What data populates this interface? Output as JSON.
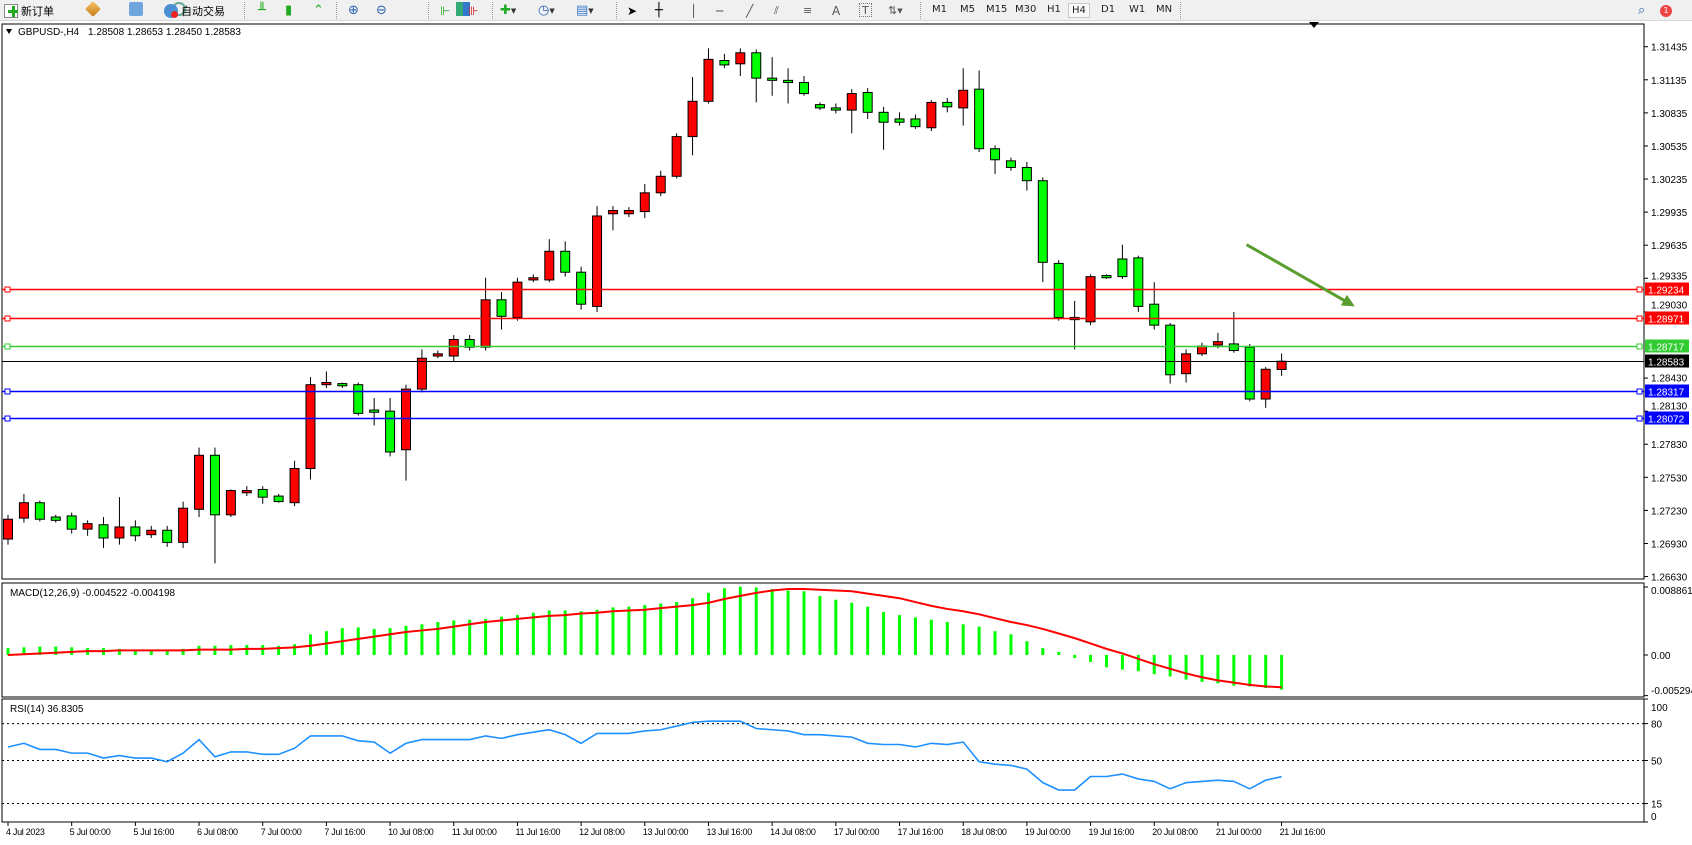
{
  "toolbar": {
    "new_order": "新订单",
    "auto_trading": "自动交易",
    "timeframes": [
      "M1",
      "M5",
      "M15",
      "M30",
      "H1",
      "H4",
      "D1",
      "W1",
      "MN"
    ],
    "active_timeframe": "H4",
    "notification_count": "1"
  },
  "chart_header": {
    "symbol": "GBPUSD-,H4",
    "ohlc": "1.28508 1.28653 1.28450 1.28583"
  },
  "macd_header": "MACD(12,26,9) -0.004522 -0.004198",
  "rsi_header": "RSI(14) 36.8305",
  "chart_data": [
    {
      "type": "candlestick",
      "symbol": "GBPUSD-",
      "timeframe": "H4",
      "ylim": [
        1.26608,
        1.31641
      ],
      "colors": {
        "bull": "#ff0000",
        "bear": "#00ff00",
        "outline": "#000000"
      },
      "y_ticks": [
        "1.31435",
        "1.31135",
        "1.30835",
        "1.30535",
        "1.30235",
        "1.29935",
        "1.29635",
        "1.29335",
        "1.29030",
        "1.28430",
        "1.28130",
        "1.27830",
        "1.27530",
        "1.27230",
        "1.26930",
        "1.26630"
      ],
      "x_ticks": [
        {
          "bar": 0,
          "label": "4 Jul 2023"
        },
        {
          "bar": 4,
          "label": "5 Jul 00:00"
        },
        {
          "bar": 8,
          "label": "5 Jul 16:00"
        },
        {
          "bar": 12,
          "label": "6 Jul 08:00"
        },
        {
          "bar": 16,
          "label": "7 Jul 00:00"
        },
        {
          "bar": 20,
          "label": "7 Jul 16:00"
        },
        {
          "bar": 24,
          "label": "10 Jul 08:00"
        },
        {
          "bar": 28,
          "label": "11 Jul 00:00"
        },
        {
          "bar": 32,
          "label": "11 Jul 16:00"
        },
        {
          "bar": 36,
          "label": "12 Jul 08:00"
        },
        {
          "bar": 40,
          "label": "13 Jul 00:00"
        },
        {
          "bar": 44,
          "label": "13 Jul 16:00"
        },
        {
          "bar": 48,
          "label": "14 Jul 08:00"
        },
        {
          "bar": 52,
          "label": "17 Jul 00:00"
        },
        {
          "bar": 56,
          "label": "17 Jul 16:00"
        },
        {
          "bar": 60,
          "label": "18 Jul 08:00"
        },
        {
          "bar": 64,
          "label": "19 Jul 00:00"
        },
        {
          "bar": 68,
          "label": "19 Jul 16:00"
        },
        {
          "bar": 72,
          "label": "20 Jul 08:00"
        },
        {
          "bar": 76,
          "label": "21 Jul 00:00"
        },
        {
          "bar": 80,
          "label": "21 Jul 16:00"
        }
      ],
      "ohlc": [
        [
          1.2697,
          1.2719,
          1.2692,
          1.2715
        ],
        [
          1.2716,
          1.2738,
          1.2712,
          1.273
        ],
        [
          1.273,
          1.2732,
          1.2713,
          1.2715
        ],
        [
          1.2717,
          1.2719,
          1.2712,
          1.2714
        ],
        [
          1.2718,
          1.2721,
          1.2702,
          1.2706
        ],
        [
          1.2706,
          1.2714,
          1.27,
          1.2711
        ],
        [
          1.271,
          1.2717,
          1.2689,
          1.2698
        ],
        [
          1.2698,
          1.2735,
          1.2692,
          1.2708
        ],
        [
          1.2708,
          1.2714,
          1.2695,
          1.27
        ],
        [
          1.2701,
          1.2709,
          1.2698,
          1.2705
        ],
        [
          1.2705,
          1.2709,
          1.269,
          1.2694
        ],
        [
          1.2694,
          1.2731,
          1.2689,
          1.2725
        ],
        [
          1.2724,
          1.278,
          1.2717,
          1.2773
        ],
        [
          1.2773,
          1.278,
          1.2675,
          1.2719
        ],
        [
          1.2719,
          1.2742,
          1.2717,
          1.2741
        ],
        [
          1.2739,
          1.2745,
          1.2736,
          1.2741
        ],
        [
          1.2742,
          1.2745,
          1.2729,
          1.2735
        ],
        [
          1.2736,
          1.2738,
          1.273,
          1.2731
        ],
        [
          1.273,
          1.2768,
          1.2727,
          1.2761
        ],
        [
          1.2761,
          1.2844,
          1.2751,
          1.2837
        ],
        [
          1.2837,
          1.2849,
          1.2834,
          1.2839
        ],
        [
          1.2838,
          1.2839,
          1.2834,
          1.2836
        ],
        [
          1.2837,
          1.2839,
          1.2809,
          1.2811
        ],
        [
          1.2814,
          1.2825,
          1.28,
          1.2812
        ],
        [
          1.2813,
          1.2825,
          1.2772,
          1.2776
        ],
        [
          1.2778,
          1.2837,
          1.275,
          1.2833
        ],
        [
          1.2833,
          1.2869,
          1.283,
          1.2861
        ],
        [
          1.2863,
          1.2868,
          1.2861,
          1.2865
        ],
        [
          1.2863,
          1.2882,
          1.2858,
          1.2878
        ],
        [
          1.2878,
          1.2882,
          1.2868,
          1.2871
        ],
        [
          1.2871,
          1.2934,
          1.2868,
          1.2914
        ],
        [
          1.2914,
          1.2921,
          1.2887,
          1.2899
        ],
        [
          1.2898,
          1.2934,
          1.2895,
          1.293
        ],
        [
          1.2932,
          1.2937,
          1.293,
          1.2934
        ],
        [
          1.2932,
          1.2969,
          1.293,
          1.2958
        ],
        [
          1.2958,
          1.2967,
          1.2935,
          1.2939
        ],
        [
          1.2939,
          1.2944,
          1.2905,
          1.291
        ],
        [
          1.2908,
          1.2999,
          1.2903,
          1.299
        ],
        [
          1.2992,
          1.2999,
          1.2977,
          1.2995
        ],
        [
          1.2992,
          1.2998,
          1.2989,
          1.2995
        ],
        [
          1.2994,
          1.3019,
          1.2988,
          1.3011
        ],
        [
          1.3011,
          1.3031,
          1.3008,
          1.3026
        ],
        [
          1.3026,
          1.3065,
          1.3024,
          1.3062
        ],
        [
          1.3062,
          1.3116,
          1.3045,
          1.3094
        ],
        [
          1.3094,
          1.3142,
          1.3092,
          1.3132
        ],
        [
          1.3131,
          1.3137,
          1.3124,
          1.3127
        ],
        [
          1.3128,
          1.3142,
          1.3117,
          1.3138
        ],
        [
          1.3138,
          1.3141,
          1.3093,
          1.3115
        ],
        [
          1.3115,
          1.3134,
          1.3099,
          1.3113
        ],
        [
          1.3113,
          1.3124,
          1.3092,
          1.3111
        ],
        [
          1.3111,
          1.3117,
          1.3099,
          1.3101
        ],
        [
          1.3091,
          1.3093,
          1.3086,
          1.3088
        ],
        [
          1.3088,
          1.3092,
          1.3083,
          1.3086
        ],
        [
          1.3086,
          1.3105,
          1.3065,
          1.3101
        ],
        [
          1.3102,
          1.3106,
          1.3078,
          1.3084
        ],
        [
          1.3084,
          1.3089,
          1.305,
          1.3075
        ],
        [
          1.3078,
          1.3084,
          1.3072,
          1.3075
        ],
        [
          1.3078,
          1.3082,
          1.3069,
          1.3071
        ],
        [
          1.307,
          1.3095,
          1.3067,
          1.3093
        ],
        [
          1.3093,
          1.3097,
          1.3084,
          1.3089
        ],
        [
          1.3088,
          1.3124,
          1.3072,
          1.3104
        ],
        [
          1.3105,
          1.3122,
          1.3048,
          1.3051
        ],
        [
          1.3051,
          1.3054,
          1.3028,
          1.3041
        ],
        [
          1.304,
          1.3043,
          1.3031,
          1.3034
        ],
        [
          1.3034,
          1.3039,
          1.3013,
          1.3022
        ],
        [
          1.3022,
          1.3025,
          1.293,
          1.2948
        ],
        [
          1.2947,
          1.295,
          1.2895,
          1.2898
        ],
        [
          1.2898,
          1.2913,
          1.2869,
          1.2896
        ],
        [
          1.2894,
          1.2937,
          1.2891,
          1.2935
        ],
        [
          1.2936,
          1.2937,
          1.2933,
          1.2934
        ],
        [
          1.2951,
          1.2964,
          1.2933,
          1.2935
        ],
        [
          1.2952,
          1.2954,
          1.2903,
          1.2908
        ],
        [
          1.291,
          1.293,
          1.2887,
          1.2891
        ],
        [
          1.2891,
          1.2893,
          1.2838,
          1.2846
        ],
        [
          1.2847,
          1.2869,
          1.2839,
          1.2865
        ],
        [
          1.2865,
          1.2875,
          1.2863,
          1.2872
        ],
        [
          1.2873,
          1.2884,
          1.287,
          1.2876
        ],
        [
          1.2874,
          1.2903,
          1.2866,
          1.2868
        ],
        [
          1.2871,
          1.2874,
          1.2822,
          1.2824
        ],
        [
          1.2824,
          1.2853,
          1.2816,
          1.2851
        ],
        [
          1.28508,
          1.28653,
          1.2845,
          1.28583
        ]
      ],
      "horizontal_lines": [
        {
          "price": "1.29234",
          "color": "#ff0000"
        },
        {
          "price": "1.28971",
          "color": "#ff0000"
        },
        {
          "price": "1.28717",
          "color": "#32cd32"
        },
        {
          "price": "1.28583",
          "color": "#000000",
          "bid": true
        },
        {
          "price": "1.28317",
          "color": "#0000ff"
        },
        {
          "price": "1.28072",
          "color": "#0000ff"
        }
      ],
      "arrow": {
        "color": "#5a9e2f",
        "from": {
          "bar": 77.8,
          "price": 1.2964
        },
        "to": {
          "bar": 84.6,
          "price": 1.2908
        }
      }
    },
    {
      "type": "bar+line",
      "indicator": "MACD(12,26,9)",
      "ylim": [
        -0.005294,
        0.008861
      ],
      "y_ticks": [
        "0.008861",
        "0.00",
        "-0.005294"
      ],
      "colors": {
        "histogram": "#00ff00",
        "signal": "#ff0000"
      },
      "histogram": [
        0.0009,
        0.001,
        0.0011,
        0.0011,
        0.001,
        0.0009,
        0.0009,
        0.0008,
        0.0007,
        0.0006,
        0.0005,
        0.0008,
        0.0012,
        0.0012,
        0.0013,
        0.0013,
        0.0013,
        0.0012,
        0.0014,
        0.0027,
        0.0031,
        0.0035,
        0.0036,
        0.0034,
        0.0035,
        0.0038,
        0.004,
        0.0043,
        0.0045,
        0.0046,
        0.0047,
        0.005,
        0.0052,
        0.0055,
        0.0058,
        0.0058,
        0.0057,
        0.0059,
        0.0062,
        0.0063,
        0.0065,
        0.0067,
        0.0069,
        0.0074,
        0.0081,
        0.0087,
        0.0089,
        0.0088,
        0.0086,
        0.0084,
        0.0083,
        0.0077,
        0.0072,
        0.0068,
        0.0063,
        0.0056,
        0.0052,
        0.0049,
        0.0046,
        0.0043,
        0.004,
        0.0037,
        0.0031,
        0.0027,
        0.0018,
        0.0009,
        0.0004,
        -0.0004,
        -0.0009,
        -0.0016,
        -0.0019,
        -0.0021,
        -0.0025,
        -0.0028,
        -0.0032,
        -0.0035,
        -0.0037,
        -0.004,
        -0.0041,
        -0.0043,
        -0.004522
      ],
      "signal": [
        0.0,
        0.0001,
        0.0002,
        0.0003,
        0.0004,
        0.0005,
        0.0005,
        0.0006,
        0.0006,
        0.0006,
        0.0006,
        0.0006,
        0.0007,
        0.0007,
        0.0007,
        0.0008,
        0.0008,
        0.0009,
        0.001,
        0.0012,
        0.0015,
        0.0018,
        0.0021,
        0.0024,
        0.0027,
        0.003,
        0.0032,
        0.0034,
        0.0037,
        0.004,
        0.0043,
        0.0045,
        0.0047,
        0.0049,
        0.0051,
        0.0052,
        0.0054,
        0.0055,
        0.0057,
        0.0058,
        0.0059,
        0.0061,
        0.0063,
        0.0065,
        0.0068,
        0.0073,
        0.0077,
        0.0081,
        0.0084,
        0.0086,
        0.0086,
        0.0085,
        0.0084,
        0.0083,
        0.008,
        0.0077,
        0.0074,
        0.0069,
        0.0064,
        0.006,
        0.0057,
        0.0053,
        0.0048,
        0.0043,
        0.0039,
        0.0034,
        0.0028,
        0.0022,
        0.0015,
        0.0008,
        0.0002,
        -0.0005,
        -0.0012,
        -0.0018,
        -0.0024,
        -0.0029,
        -0.0033,
        -0.0036,
        -0.0039,
        -0.0041,
        -0.004198
      ]
    },
    {
      "type": "line",
      "indicator": "RSI(14)",
      "ylim": [
        0,
        100
      ],
      "y_ticks": [
        "100",
        "80",
        "50",
        "15",
        "0"
      ],
      "levels": [
        80,
        50,
        15
      ],
      "color": "#1e90ff",
      "values": [
        61,
        64,
        59,
        59,
        56,
        56,
        52,
        54,
        52,
        52,
        49,
        56,
        67,
        53,
        57,
        57,
        55,
        55,
        60,
        70,
        70,
        70,
        66,
        65,
        56,
        64,
        67,
        67,
        67,
        67,
        70,
        68,
        71,
        73,
        75,
        71,
        64,
        72,
        72,
        72,
        74,
        75,
        78,
        81,
        82,
        82,
        82,
        76,
        75,
        74,
        71,
        71,
        70,
        69,
        64,
        63,
        63,
        61,
        64,
        63,
        65,
        49,
        47,
        46,
        43,
        32,
        26,
        26,
        37,
        37,
        39,
        35,
        33,
        27,
        32,
        33,
        34,
        33,
        27,
        34,
        36.83
      ]
    }
  ]
}
